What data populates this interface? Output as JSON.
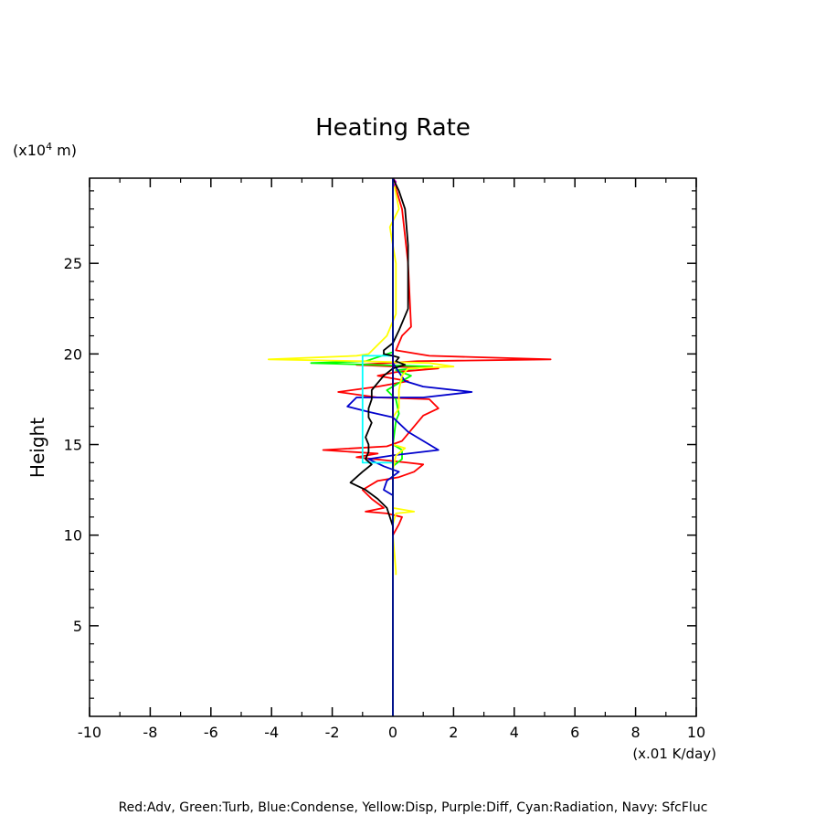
{
  "chart_data": {
    "type": "line",
    "title": "Heating Rate",
    "xlabel": "",
    "ylabel": "Height",
    "x_unit": "(x.01 K/day)",
    "y_unit": "(x10",
    "y_unit_exp": "4",
    "y_unit_suffix": " m)",
    "xlim": [
      -10,
      10
    ],
    "ylim": [
      0,
      29.7
    ],
    "xticks": [
      -10,
      -8,
      -6,
      -4,
      -2,
      0,
      2,
      4,
      6,
      8,
      10
    ],
    "xtick_labels": [
      "-10",
      "-8",
      "-6",
      "-4",
      "-2",
      "0",
      "2",
      "4",
      "6",
      "8",
      "10"
    ],
    "yticks": [
      5,
      10,
      15,
      20,
      25
    ],
    "ytick_labels": [
      "5",
      "10",
      "15",
      "20",
      "25"
    ],
    "grid": false,
    "series": [
      {
        "color": "#ff0000",
        "points": [
          [
            0,
            29.7
          ],
          [
            0.3,
            28
          ],
          [
            0.5,
            25
          ],
          [
            0.6,
            21.5
          ],
          [
            0.3,
            21.0
          ],
          [
            0.1,
            20.2
          ],
          [
            1.2,
            19.9
          ],
          [
            5.2,
            19.7
          ],
          [
            0.8,
            19.6
          ],
          [
            -1.2,
            19.4
          ],
          [
            1.5,
            19.2
          ],
          [
            0.1,
            19.0
          ],
          [
            -0.5,
            18.8
          ],
          [
            0.5,
            18.5
          ],
          [
            -0.5,
            18.2
          ],
          [
            -1.8,
            17.9
          ],
          [
            -0.5,
            17.6
          ],
          [
            1.2,
            17.5
          ],
          [
            1.5,
            17.0
          ],
          [
            1.0,
            16.6
          ],
          [
            0.8,
            16.2
          ],
          [
            0.3,
            15.2
          ],
          [
            -0.2,
            14.9
          ],
          [
            -2.3,
            14.7
          ],
          [
            -0.5,
            14.5
          ],
          [
            -1.2,
            14.3
          ],
          [
            0.5,
            14.0
          ],
          [
            1.0,
            13.9
          ],
          [
            0.7,
            13.5
          ],
          [
            0.2,
            13.2
          ],
          [
            -0.5,
            13.0
          ],
          [
            -1.0,
            12.5
          ],
          [
            -0.7,
            12.0
          ],
          [
            -0.3,
            11.5
          ],
          [
            -0.9,
            11.3
          ],
          [
            -0.2,
            11.2
          ],
          [
            0.3,
            11.0
          ],
          [
            0.2,
            10.6
          ],
          [
            0,
            10.0
          ],
          [
            0,
            0
          ]
        ]
      },
      {
        "color": "#00ff00",
        "points": [
          [
            0,
            29.7
          ],
          [
            0,
            20.1
          ],
          [
            -0.9,
            19.6
          ],
          [
            -2.7,
            19.5
          ],
          [
            1.3,
            19.3
          ],
          [
            0.1,
            19.1
          ],
          [
            0.6,
            18.8
          ],
          [
            -0.2,
            18.0
          ],
          [
            0.1,
            17.5
          ],
          [
            0.2,
            16.7
          ],
          [
            0.1,
            16.3
          ],
          [
            0.0,
            15.0
          ],
          [
            0.3,
            14.7
          ],
          [
            0.3,
            14.2
          ],
          [
            0,
            13.8
          ],
          [
            0,
            0
          ]
        ]
      },
      {
        "color": "#0000cc",
        "points": [
          [
            0,
            29.7
          ],
          [
            0,
            19.5
          ],
          [
            0.2,
            19.0
          ],
          [
            0.4,
            18.5
          ],
          [
            1.0,
            18.2
          ],
          [
            2.6,
            17.9
          ],
          [
            1.0,
            17.6
          ],
          [
            0,
            17.6
          ],
          [
            -1.2,
            17.6
          ],
          [
            -1.5,
            17.1
          ],
          [
            -0.8,
            16.8
          ],
          [
            0,
            16.5
          ],
          [
            0.5,
            15.7
          ],
          [
            1.5,
            14.7
          ],
          [
            0,
            14.4
          ],
          [
            -0.8,
            14.2
          ],
          [
            -0.3,
            13.8
          ],
          [
            0.2,
            13.5
          ],
          [
            -0.2,
            13.0
          ],
          [
            -0.3,
            12.5
          ],
          [
            0,
            12.2
          ],
          [
            0,
            0
          ]
        ]
      },
      {
        "color": "#ffff00",
        "points": [
          [
            0,
            29.7
          ],
          [
            0.2,
            28.0
          ],
          [
            -0.1,
            27.0
          ],
          [
            0.1,
            25.0
          ],
          [
            0.1,
            22.2
          ],
          [
            -0.2,
            21.0
          ],
          [
            -0.8,
            20.0
          ],
          [
            -1.2,
            19.9
          ],
          [
            -4.1,
            19.7
          ],
          [
            -1.0,
            19.6
          ],
          [
            1.2,
            19.5
          ],
          [
            2.0,
            19.3
          ],
          [
            0.5,
            19.2
          ],
          [
            0.3,
            18.8
          ],
          [
            0.2,
            18.0
          ],
          [
            0.2,
            17.0
          ],
          [
            0,
            16.5
          ],
          [
            0,
            15.0
          ],
          [
            0.4,
            14.8
          ],
          [
            0.1,
            14.4
          ],
          [
            0,
            13.6
          ],
          [
            0,
            11.5
          ],
          [
            0.7,
            11.3
          ],
          [
            0.1,
            11.2
          ],
          [
            0,
            10.6
          ],
          [
            0,
            10.0
          ],
          [
            0.1,
            8.0
          ],
          [
            0.1,
            7.8
          ]
        ]
      },
      {
        "color": "#cc00cc",
        "points": [
          [
            0,
            29.7
          ],
          [
            0.1,
            29.5
          ],
          [
            0,
            29.2
          ],
          [
            0,
            0
          ]
        ]
      },
      {
        "color": "#00ffff",
        "points": [
          [
            0,
            29.7
          ],
          [
            0,
            19.9
          ],
          [
            -1.0,
            19.9
          ],
          [
            -1.0,
            14.0
          ],
          [
            0,
            14.0
          ],
          [
            0,
            0
          ]
        ]
      },
      {
        "color": "#000000",
        "points": [
          [
            0,
            29.7
          ],
          [
            0.2,
            29.0
          ],
          [
            0.4,
            28.0
          ],
          [
            0.5,
            26.0
          ],
          [
            0.5,
            24.0
          ],
          [
            0.5,
            22.5
          ],
          [
            0.2,
            21.3
          ],
          [
            0,
            20.6
          ],
          [
            -0.3,
            20.2
          ],
          [
            -0.3,
            20.0
          ],
          [
            0,
            19.9
          ],
          [
            0.2,
            19.8
          ],
          [
            0.1,
            19.6
          ],
          [
            0.4,
            19.4
          ],
          [
            0,
            19.2
          ],
          [
            -0.3,
            18.8
          ],
          [
            -0.5,
            18.4
          ],
          [
            -0.7,
            18.0
          ],
          [
            -0.7,
            17.5
          ],
          [
            -0.8,
            17.0
          ],
          [
            -0.8,
            16.5
          ],
          [
            -0.7,
            16.2
          ],
          [
            -0.8,
            15.8
          ],
          [
            -0.9,
            15.4
          ],
          [
            -0.8,
            15.0
          ],
          [
            -0.8,
            14.6
          ],
          [
            -0.9,
            14.2
          ],
          [
            -0.7,
            13.9
          ],
          [
            -1.0,
            13.5
          ],
          [
            -1.2,
            13.2
          ],
          [
            -1.4,
            12.9
          ],
          [
            -0.9,
            12.5
          ],
          [
            -0.5,
            12.0
          ],
          [
            -0.2,
            11.5
          ],
          [
            -0.1,
            11.0
          ],
          [
            0,
            10.5
          ],
          [
            0,
            10.0
          ]
        ]
      },
      {
        "color": "#000080",
        "points": [
          [
            0,
            29.7
          ],
          [
            0,
            0
          ]
        ]
      }
    ],
    "legend_text": "Red:Adv, Green:Turb, Blue:Condense, Yellow:Disp, Purple:Diff, Cyan:Radiation, Navy: SfcFluc",
    "legend_placement": "bottom"
  }
}
